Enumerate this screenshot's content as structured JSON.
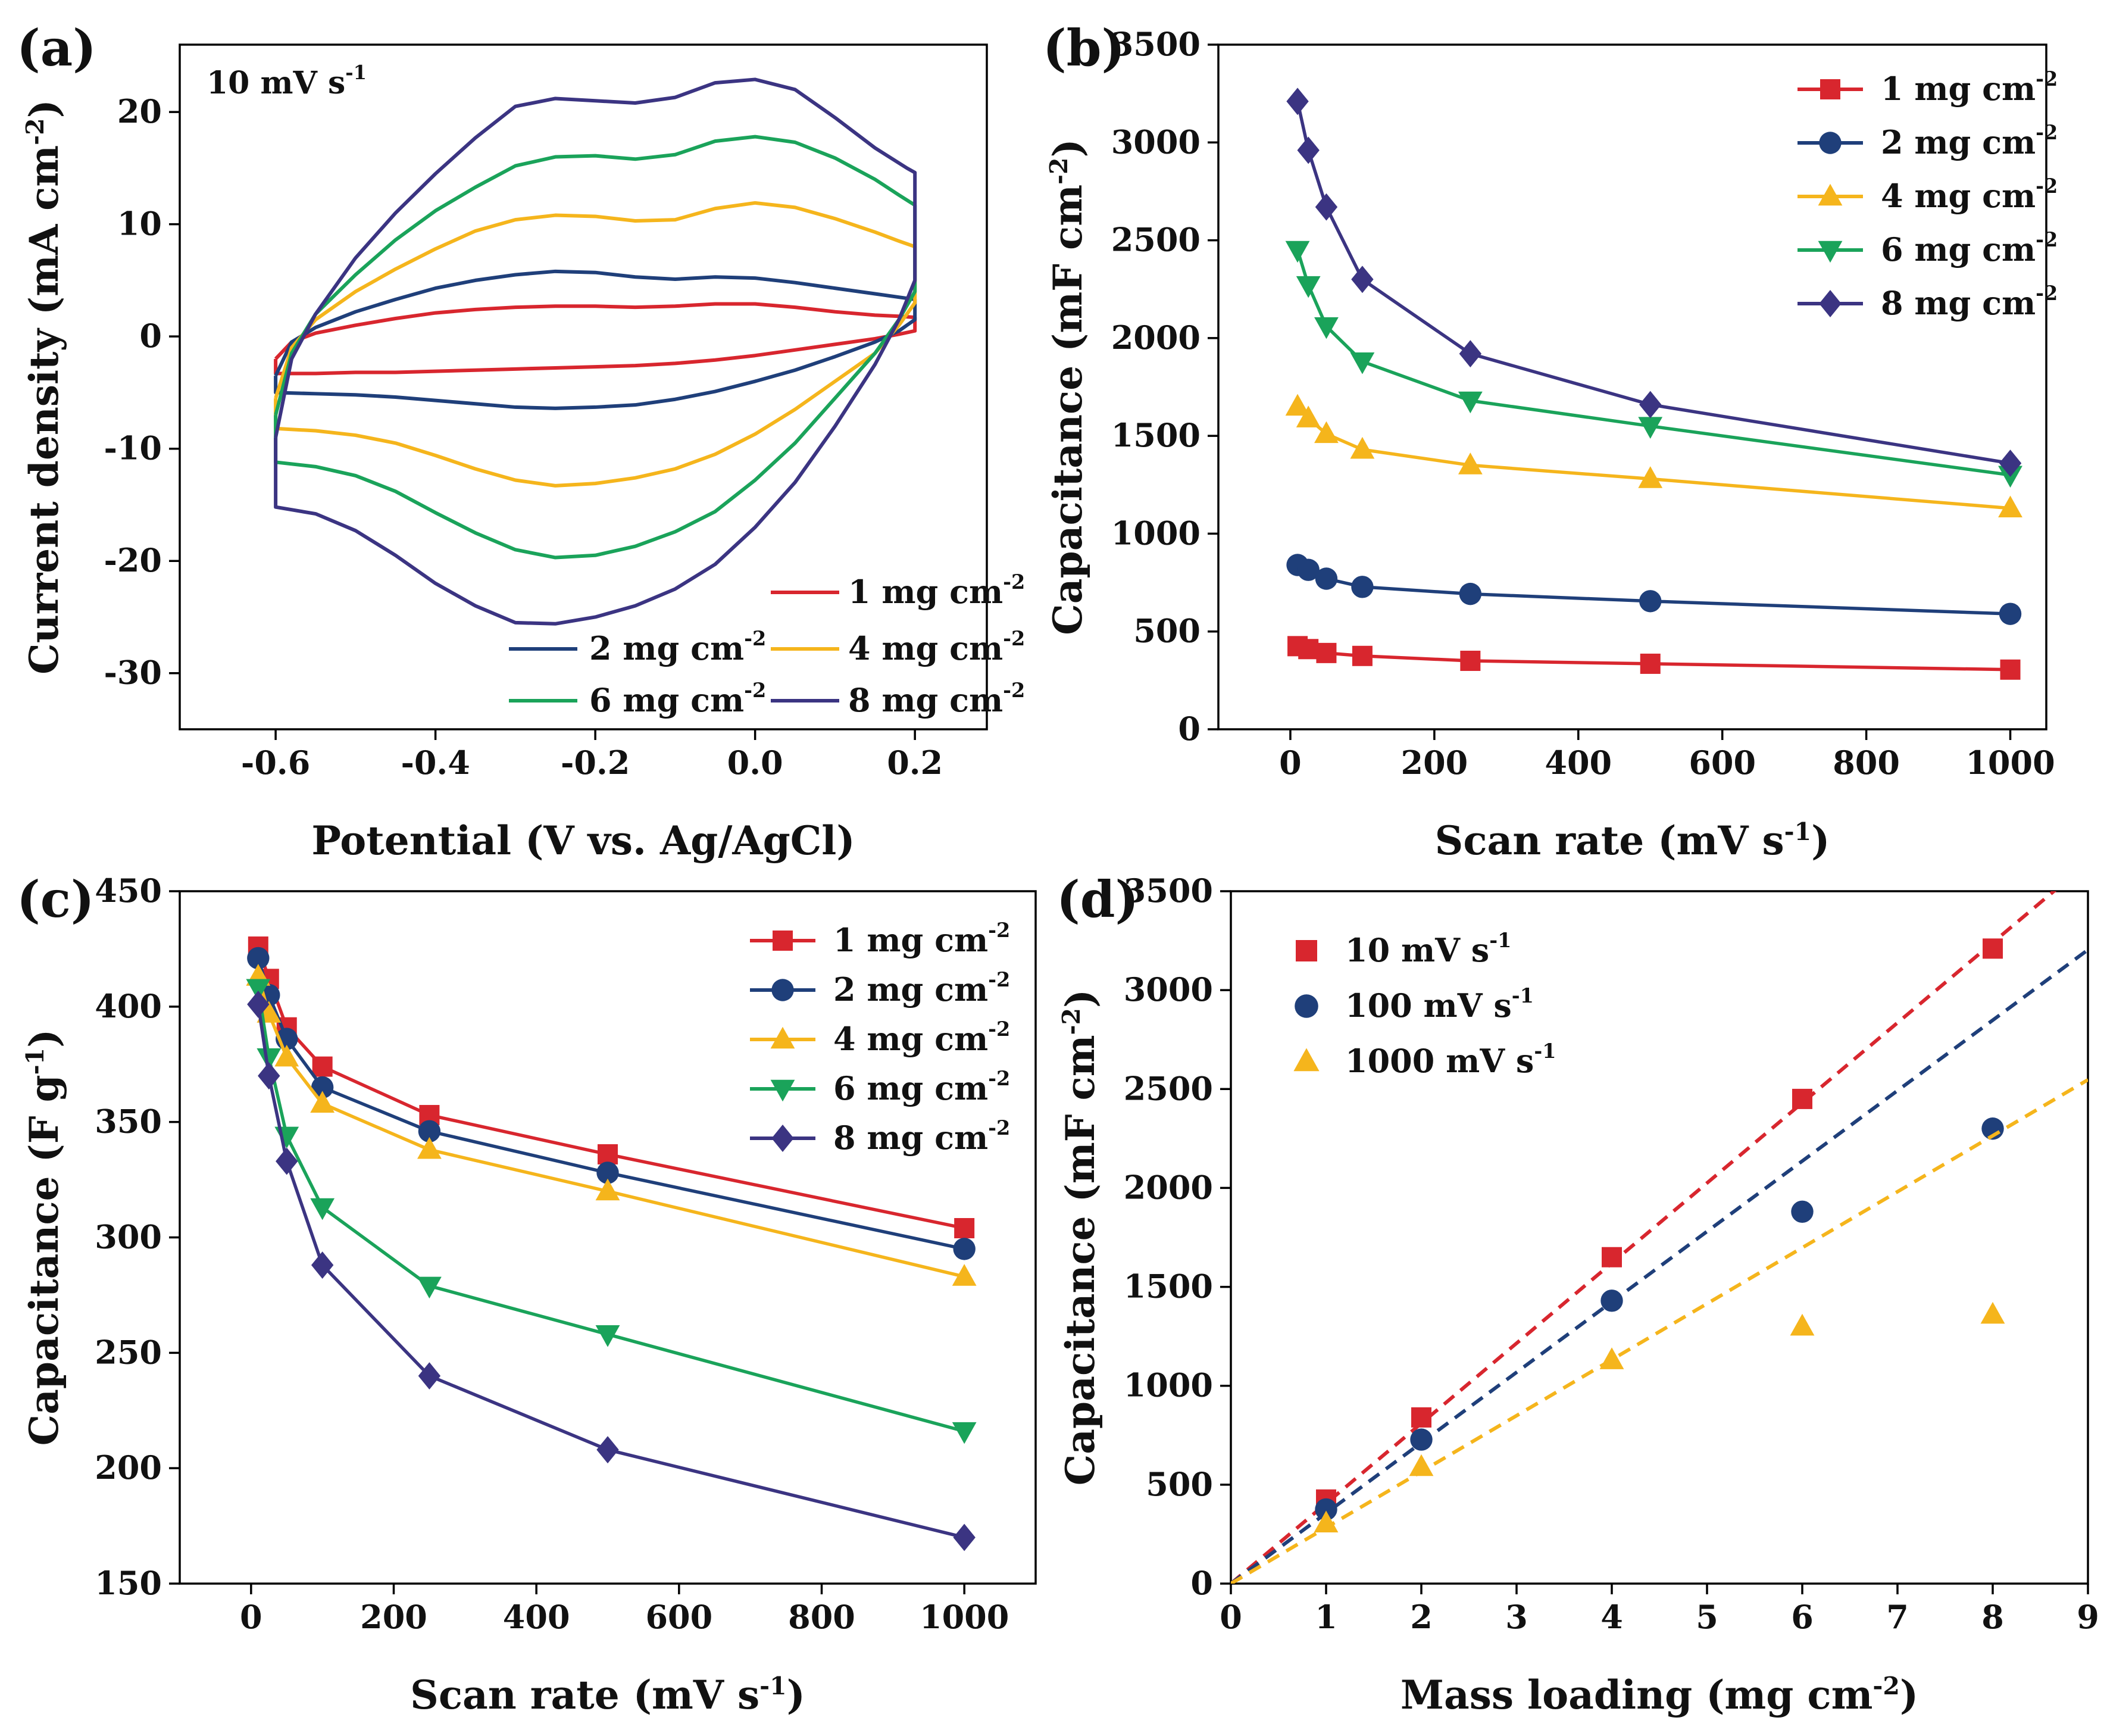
{
  "chart_data": [
    {
      "panel": "(a)",
      "type": "line",
      "title": "",
      "annotation": {
        "text": "10 mV s",
        "sup": "-1"
      },
      "xlabel": "Potential (V vs. Ag/AgCl)",
      "ylabel": {
        "text": "Current density (mA cm",
        "sup": "-2",
        "tail": ")"
      },
      "xlim": [
        -0.72,
        0.29
      ],
      "ylim": [
        -35,
        26
      ],
      "xticks": [
        -0.6,
        -0.4,
        -0.2,
        0.0,
        0.2
      ],
      "xtick_labels": [
        "-0.6",
        "-0.4",
        "-0.2",
        "0.0",
        "0.2"
      ],
      "yticks": [
        -30,
        -20,
        -10,
        0,
        10,
        20
      ],
      "ytick_labels": [
        "-30",
        "-20",
        "-10",
        "0",
        "10",
        "20"
      ],
      "legend_loc": "lower-right",
      "series": [
        {
          "name": "1 mg cm",
          "sup": "-2",
          "color": "#d8262e",
          "x": [
            -0.6,
            -0.58,
            -0.55,
            -0.5,
            -0.45,
            -0.4,
            -0.35,
            -0.3,
            -0.25,
            -0.2,
            -0.15,
            -0.1,
            -0.05,
            0.0,
            0.05,
            0.1,
            0.15,
            0.18,
            0.2,
            0.2,
            0.18,
            0.15,
            0.1,
            0.05,
            0.0,
            -0.05,
            -0.1,
            -0.15,
            -0.2,
            -0.25,
            -0.3,
            -0.35,
            -0.4,
            -0.45,
            -0.5,
            -0.55,
            -0.6,
            -0.6
          ],
          "y": [
            -2.0,
            -0.5,
            0.3,
            1.0,
            1.6,
            2.1,
            2.4,
            2.6,
            2.7,
            2.7,
            2.6,
            2.7,
            2.9,
            2.9,
            2.6,
            2.2,
            1.9,
            1.8,
            1.7,
            0.5,
            0.2,
            -0.2,
            -0.7,
            -1.2,
            -1.7,
            -2.1,
            -2.4,
            -2.6,
            -2.7,
            -2.8,
            -2.9,
            -3.0,
            -3.1,
            -3.2,
            -3.2,
            -3.3,
            -3.3,
            -2.0
          ]
        },
        {
          "name": "2 mg cm",
          "sup": "-2",
          "color": "#1f3f7a",
          "x": [
            -0.6,
            -0.58,
            -0.55,
            -0.5,
            -0.45,
            -0.4,
            -0.35,
            -0.3,
            -0.25,
            -0.2,
            -0.15,
            -0.1,
            -0.05,
            0.0,
            0.05,
            0.1,
            0.15,
            0.18,
            0.2,
            0.2,
            0.18,
            0.15,
            0.1,
            0.05,
            0.0,
            -0.05,
            -0.1,
            -0.15,
            -0.2,
            -0.25,
            -0.3,
            -0.35,
            -0.4,
            -0.45,
            -0.5,
            -0.55,
            -0.6,
            -0.6
          ],
          "y": [
            -3.5,
            -0.5,
            0.8,
            2.2,
            3.3,
            4.3,
            5.0,
            5.5,
            5.8,
            5.7,
            5.3,
            5.1,
            5.3,
            5.2,
            4.8,
            4.3,
            3.8,
            3.5,
            3.3,
            1.5,
            0.5,
            -0.5,
            -1.8,
            -3.0,
            -4.0,
            -4.9,
            -5.6,
            -6.1,
            -6.3,
            -6.4,
            -6.3,
            -6.0,
            -5.7,
            -5.4,
            -5.2,
            -5.1,
            -5.0,
            -3.5
          ]
        },
        {
          "name": "4 mg cm",
          "sup": "-2",
          "color": "#f5b51c",
          "x": [
            -0.6,
            -0.58,
            -0.55,
            -0.5,
            -0.45,
            -0.4,
            -0.35,
            -0.3,
            -0.25,
            -0.2,
            -0.15,
            -0.1,
            -0.05,
            0.0,
            0.05,
            0.1,
            0.15,
            0.18,
            0.2,
            0.2,
            0.18,
            0.15,
            0.1,
            0.05,
            0.0,
            -0.05,
            -0.1,
            -0.15,
            -0.2,
            -0.25,
            -0.3,
            -0.35,
            -0.4,
            -0.45,
            -0.5,
            -0.55,
            -0.6,
            -0.6
          ],
          "y": [
            -5.5,
            -1.0,
            1.5,
            4.0,
            6.0,
            7.8,
            9.4,
            10.4,
            10.8,
            10.7,
            10.3,
            10.4,
            11.4,
            11.9,
            11.5,
            10.5,
            9.3,
            8.5,
            8.0,
            3.0,
            1.0,
            -1.5,
            -4.0,
            -6.5,
            -8.7,
            -10.5,
            -11.8,
            -12.6,
            -13.1,
            -13.3,
            -12.8,
            -11.8,
            -10.6,
            -9.5,
            -8.8,
            -8.4,
            -8.2,
            -5.5
          ]
        },
        {
          "name": "6 mg cm",
          "sup": "-2",
          "color": "#1aa35a",
          "x": [
            -0.6,
            -0.58,
            -0.55,
            -0.5,
            -0.45,
            -0.4,
            -0.35,
            -0.3,
            -0.25,
            -0.2,
            -0.15,
            -0.1,
            -0.05,
            0.0,
            0.05,
            0.1,
            0.15,
            0.18,
            0.2,
            0.2,
            0.18,
            0.15,
            0.1,
            0.05,
            0.0,
            -0.05,
            -0.1,
            -0.15,
            -0.2,
            -0.25,
            -0.3,
            -0.35,
            -0.4,
            -0.45,
            -0.5,
            -0.55,
            -0.6,
            -0.6
          ],
          "y": [
            -7.0,
            -1.5,
            2.0,
            5.5,
            8.6,
            11.2,
            13.3,
            15.2,
            16.0,
            16.1,
            15.8,
            16.2,
            17.4,
            17.8,
            17.3,
            15.9,
            14.0,
            12.6,
            11.7,
            4.0,
            1.5,
            -1.5,
            -5.5,
            -9.5,
            -12.8,
            -15.6,
            -17.4,
            -18.7,
            -19.5,
            -19.7,
            -19.0,
            -17.5,
            -15.7,
            -13.8,
            -12.4,
            -11.6,
            -11.2,
            -7.0
          ]
        },
        {
          "name": "8 mg cm",
          "sup": "-2",
          "color": "#3b3482",
          "x": [
            -0.6,
            -0.58,
            -0.55,
            -0.5,
            -0.45,
            -0.4,
            -0.35,
            -0.3,
            -0.25,
            -0.2,
            -0.15,
            -0.1,
            -0.05,
            0.0,
            0.05,
            0.1,
            0.15,
            0.19,
            0.2,
            0.2,
            0.18,
            0.15,
            0.1,
            0.05,
            0.0,
            -0.05,
            -0.1,
            -0.15,
            -0.2,
            -0.25,
            -0.3,
            -0.35,
            -0.4,
            -0.45,
            -0.5,
            -0.55,
            -0.6,
            -0.6
          ],
          "y": [
            -9.0,
            -2.0,
            2.0,
            7.0,
            11.0,
            14.5,
            17.7,
            20.5,
            21.2,
            21.0,
            20.8,
            21.3,
            22.6,
            22.9,
            22.0,
            19.5,
            16.8,
            15.0,
            14.6,
            5.0,
            1.5,
            -2.5,
            -8.0,
            -13.0,
            -17.0,
            -20.3,
            -22.5,
            -24.0,
            -25.0,
            -25.6,
            -25.5,
            -24.0,
            -22.0,
            -19.5,
            -17.3,
            -15.8,
            -15.2,
            -9.0
          ]
        }
      ]
    },
    {
      "panel": "(b)",
      "type": "line",
      "title": "",
      "xlabel": {
        "text": "Scan rate (mV s",
        "sup": "-1",
        "tail": ")"
      },
      "ylabel": {
        "text": "Capacitance (mF cm",
        "sup": "-2",
        "tail": ")"
      },
      "xlim": [
        -100,
        1050
      ],
      "ylim": [
        0,
        3500
      ],
      "xticks": [
        0,
        200,
        400,
        600,
        800,
        1000
      ],
      "xtick_labels": [
        "0",
        "200",
        "400",
        "600",
        "800",
        "1000"
      ],
      "yticks": [
        0,
        500,
        1000,
        1500,
        2000,
        2500,
        3000,
        3500
      ],
      "ytick_labels": [
        "0",
        "500",
        "1000",
        "1500",
        "2000",
        "2500",
        "3000",
        "3500"
      ],
      "legend_loc": "top-right",
      "series": [
        {
          "name": "1 mg cm",
          "sup": "-2",
          "color": "#d8262e",
          "marker": "square",
          "x": [
            10,
            25,
            50,
            100,
            250,
            500,
            1000
          ],
          "y": [
            425,
            410,
            390,
            375,
            350,
            335,
            305
          ]
        },
        {
          "name": "2 mg cm",
          "sup": "-2",
          "color": "#1f3f7a",
          "marker": "circle",
          "x": [
            10,
            25,
            50,
            100,
            250,
            500,
            1000
          ],
          "y": [
            840,
            815,
            770,
            728,
            692,
            655,
            590
          ]
        },
        {
          "name": "4 mg cm",
          "sup": "-2",
          "color": "#f5b51c",
          "marker": "triangle-up",
          "x": [
            10,
            25,
            50,
            100,
            250,
            500,
            1000
          ],
          "y": [
            1650,
            1590,
            1510,
            1430,
            1350,
            1280,
            1130
          ]
        },
        {
          "name": "6 mg cm",
          "sup": "-2",
          "color": "#1aa35a",
          "marker": "triangle-down",
          "x": [
            10,
            25,
            50,
            100,
            250,
            500,
            1000
          ],
          "y": [
            2450,
            2270,
            2060,
            1880,
            1680,
            1550,
            1300
          ]
        },
        {
          "name": "8 mg cm",
          "sup": "-2",
          "color": "#3b3482",
          "marker": "diamond",
          "x": [
            10,
            25,
            50,
            100,
            250,
            500,
            1000
          ],
          "y": [
            3210,
            2960,
            2670,
            2300,
            1920,
            1660,
            1360
          ]
        }
      ]
    },
    {
      "panel": "(c)",
      "type": "line",
      "title": "",
      "xlabel": {
        "text": "Scan rate (mV s",
        "sup": "-1",
        "tail": ")"
      },
      "ylabel": {
        "text": "Capacitance (F g",
        "sup": "-1",
        "tail": ")"
      },
      "xlim": [
        -100,
        1100
      ],
      "ylim": [
        150,
        450
      ],
      "xticks": [
        0,
        200,
        400,
        600,
        800,
        1000
      ],
      "xtick_labels": [
        "0",
        "200",
        "400",
        "600",
        "800",
        "1000"
      ],
      "yticks": [
        150,
        200,
        250,
        300,
        350,
        400,
        450
      ],
      "ytick_labels": [
        "150",
        "200",
        "250",
        "300",
        "350",
        "400",
        "450"
      ],
      "legend_loc": "top-right",
      "series": [
        {
          "name": "1 mg cm",
          "sup": "-2",
          "color": "#d8262e",
          "marker": "square",
          "x": [
            10,
            25,
            50,
            100,
            250,
            500,
            1000
          ],
          "y": [
            426,
            412,
            391,
            374,
            353,
            336,
            304
          ]
        },
        {
          "name": "2 mg cm",
          "sup": "-2",
          "color": "#1f3f7a",
          "marker": "circle",
          "x": [
            10,
            25,
            50,
            100,
            250,
            500,
            1000
          ],
          "y": [
            421,
            405,
            386,
            365,
            346,
            328,
            295
          ]
        },
        {
          "name": "4 mg cm",
          "sup": "-2",
          "color": "#f5b51c",
          "marker": "triangle-up",
          "x": [
            10,
            25,
            50,
            100,
            250,
            500,
            1000
          ],
          "y": [
            413,
            397,
            378,
            358,
            338,
            320,
            283
          ]
        },
        {
          "name": "6 mg cm",
          "sup": "-2",
          "color": "#1aa35a",
          "marker": "triangle-down",
          "x": [
            10,
            25,
            50,
            100,
            250,
            500,
            1000
          ],
          "y": [
            408,
            378,
            344,
            313,
            279,
            258,
            216
          ]
        },
        {
          "name": "8 mg cm",
          "sup": "-2",
          "color": "#3b3482",
          "marker": "diamond",
          "x": [
            10,
            25,
            50,
            100,
            250,
            500,
            1000
          ],
          "y": [
            401,
            370,
            333,
            288,
            240,
            208,
            170
          ]
        }
      ]
    },
    {
      "panel": "(d)",
      "type": "scatter",
      "title": "",
      "xlabel": {
        "text": "Mass loading (mg cm",
        "sup": "-2",
        "tail": ")"
      },
      "ylabel": {
        "text": "Capacitance (mF cm",
        "sup": "-2",
        "tail": ")"
      },
      "xlim": [
        0,
        9
      ],
      "ylim": [
        0,
        3500
      ],
      "xticks": [
        0,
        1,
        2,
        3,
        4,
        5,
        6,
        7,
        8,
        9
      ],
      "xtick_labels": [
        "0",
        "1",
        "2",
        "3",
        "4",
        "5",
        "6",
        "7",
        "8",
        "9"
      ],
      "yticks": [
        0,
        500,
        1000,
        1500,
        2000,
        2500,
        3000,
        3500
      ],
      "ytick_labels": [
        "0",
        "500",
        "1000",
        "1500",
        "2000",
        "2500",
        "3000",
        "3500"
      ],
      "legend_loc": "top-left",
      "series": [
        {
          "name": "10 mV s",
          "sup": "-1",
          "color": "#d8262e",
          "marker": "square",
          "x": [
            1,
            2,
            4,
            6,
            8
          ],
          "y": [
            425,
            840,
            1650,
            2450,
            3210
          ],
          "fit_slope": 405
        },
        {
          "name": "100 mV s",
          "sup": "-1",
          "color": "#1f3f7a",
          "marker": "circle",
          "x": [
            1,
            2,
            4,
            6,
            8
          ],
          "y": [
            375,
            728,
            1430,
            1880,
            2300
          ],
          "fit_slope": 356
        },
        {
          "name": "1000 mV s",
          "sup": "-1",
          "color": "#f5b51c",
          "marker": "triangle-up",
          "x": [
            1,
            2,
            4,
            6,
            8
          ],
          "y": [
            305,
            590,
            1130,
            1300,
            1360
          ],
          "fit_slope": 283
        }
      ]
    }
  ]
}
